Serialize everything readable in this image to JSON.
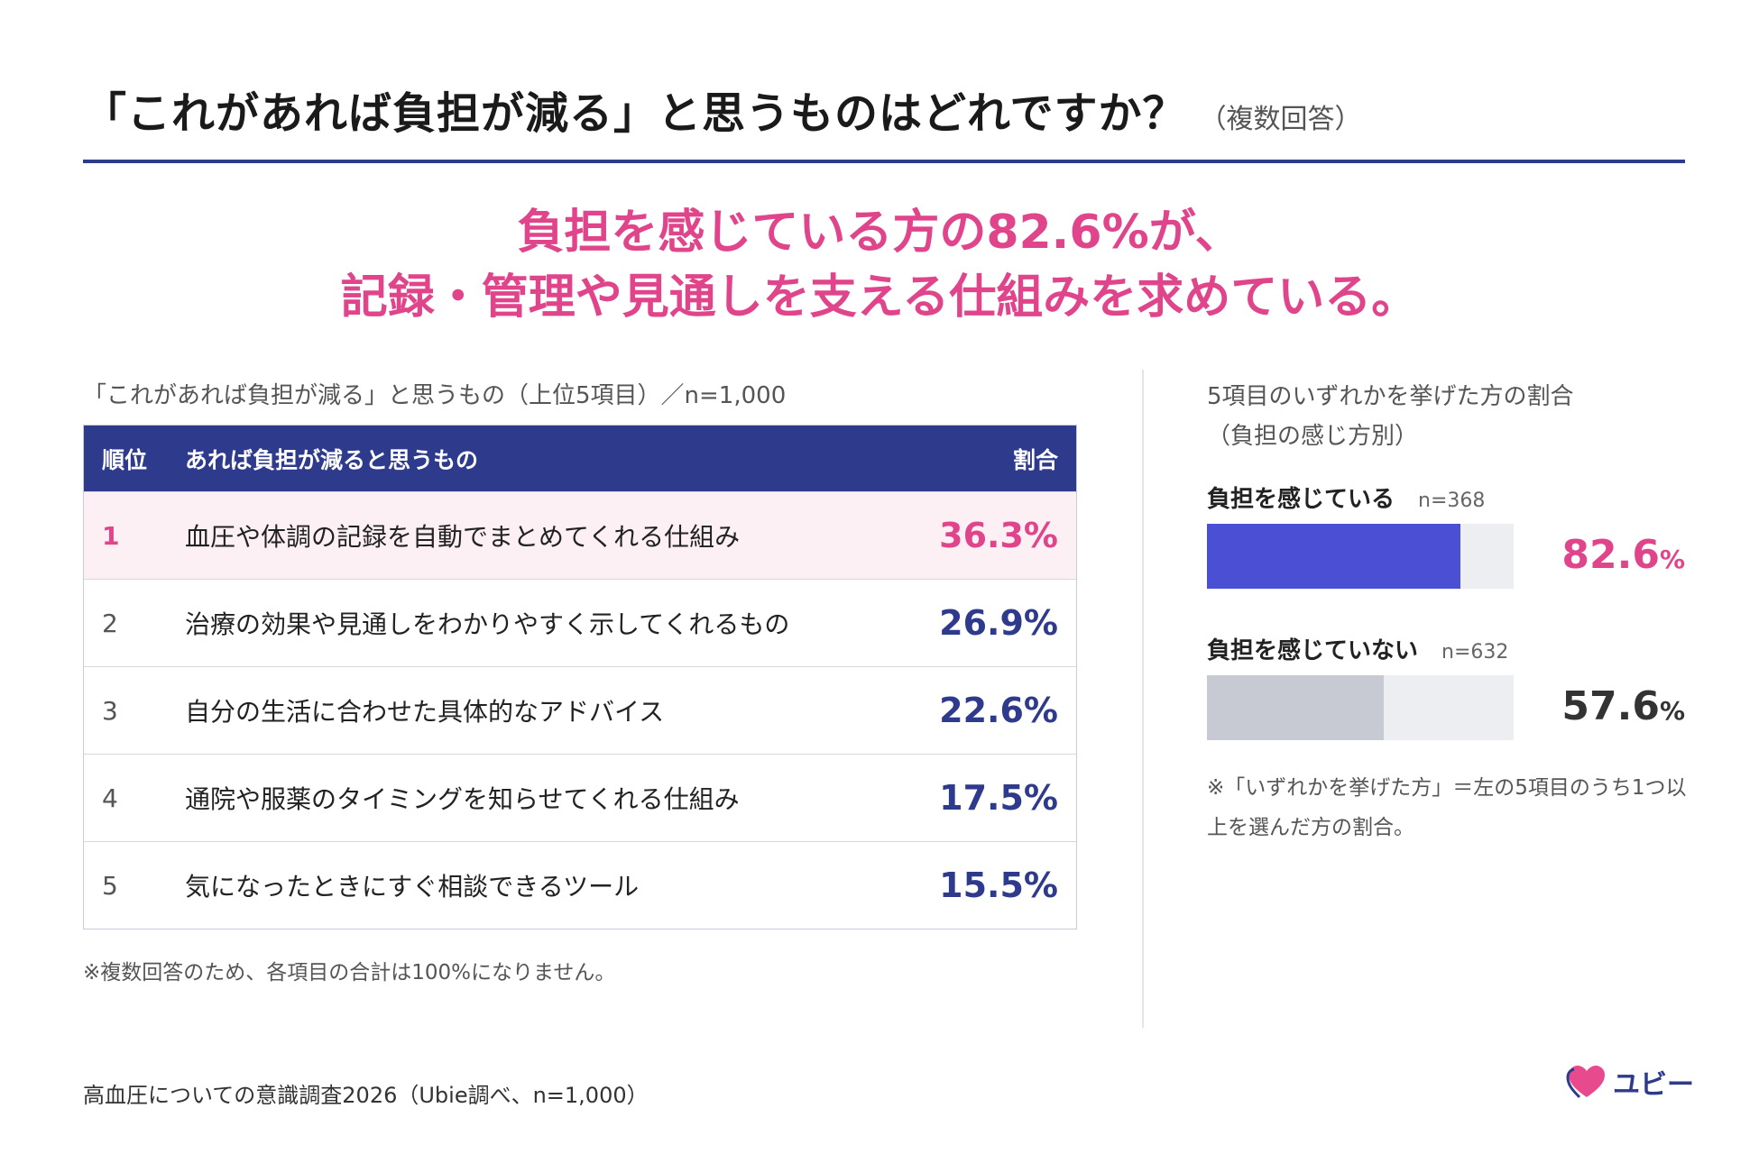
{
  "header": {
    "title": "「これがあれば負担が減る」と思うものはどれですか？",
    "title_note": "（複数回答）"
  },
  "headline": {
    "line1": "負担を感じている方の82.6%が、",
    "line2": "記録・管理や見通しを支える仕組みを求めている。"
  },
  "colors": {
    "accent_pink": "#e0448a",
    "navy": "#2e3a8c",
    "bar_blue": "#4a4fd4",
    "bar_gray": "#c7c9d3",
    "track": "#eceef2"
  },
  "chart_data": [
    {
      "type": "table",
      "title": "「これがあれば負担が減る」と思うもの（上位5項目）／n=1,000",
      "columns": [
        "順位",
        "あれば負担が減ると思うもの",
        "割合"
      ],
      "rows": [
        {
          "rank": "1",
          "item": "血圧や体調の記録を自動でまとめてくれる仕組み",
          "pct": "36.3%"
        },
        {
          "rank": "2",
          "item": "治療の効果や見通しをわかりやすく示してくれるもの",
          "pct": "26.9%"
        },
        {
          "rank": "3",
          "item": "自分の生活に合わせた具体的なアドバイス",
          "pct": "22.6%"
        },
        {
          "rank": "4",
          "item": "通院や服薬のタイミングを知らせてくれる仕組み",
          "pct": "17.5%"
        },
        {
          "rank": "5",
          "item": "気になったときにすぐ相談できるツール",
          "pct": "15.5%"
        }
      ],
      "footnote": "※複数回答のため、各項目の合計は100%になりません。"
    },
    {
      "type": "bar",
      "title_line1": "5項目のいずれかを挙げた方の割合",
      "title_line2": "（負担の感じ方別）",
      "categories": [
        "負担を感じている",
        "負担を感じていない"
      ],
      "n_labels": [
        "n=368",
        "n=632"
      ],
      "values": [
        82.6,
        57.6
      ],
      "value_labels": [
        "82.6",
        "57.6"
      ],
      "unit": "%",
      "ylim": [
        0,
        100
      ],
      "footnote": "※「いずれかを挙げた方」＝左の5項目のうち1つ以上を選んだ方の割合。"
    }
  ],
  "footer": {
    "source": "高血圧についての意識調査2026（Ubie調べ、n=1,000）",
    "logo_text": "ユビー",
    "logo_icon": "heart-icon"
  }
}
